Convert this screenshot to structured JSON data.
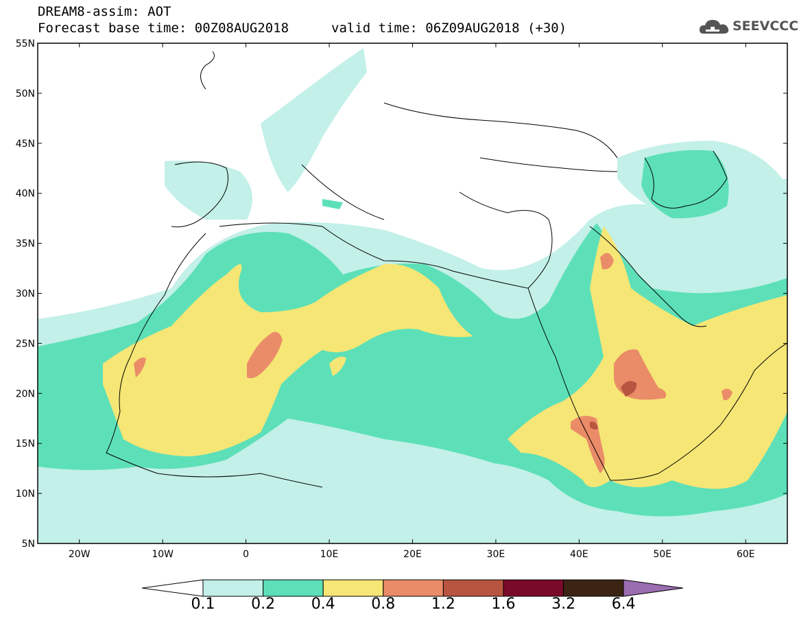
{
  "header": {
    "title": "DREAM8-assim: AOT",
    "base_time": "Forecast base time: 00Z08AUG2018",
    "valid_time": "valid time: 06Z09AUG2018 (+30)"
  },
  "logo": {
    "text": "SEEVCCC",
    "icon": "cloud-icon"
  },
  "map": {
    "lon_range": [
      -25,
      65
    ],
    "lat_range": [
      5,
      55
    ],
    "lat_ticks": [
      "5N",
      "10N",
      "15N",
      "20N",
      "25N",
      "30N",
      "35N",
      "40N",
      "45N",
      "50N",
      "55N"
    ],
    "lon_ticks": [
      "20W",
      "10W",
      "0",
      "10E",
      "20E",
      "30E",
      "40E",
      "50E",
      "60E"
    ]
  },
  "colorbar": {
    "colors": [
      "#c3f0e8",
      "#5de0b8",
      "#f6e675",
      "#ea8c68",
      "#b85540",
      "#7a0a2a",
      "#3c2414",
      "#9a6cb0"
    ],
    "under_color": "#ffffff",
    "labels": [
      "0.1",
      "0.2",
      "0.4",
      "0.8",
      "1.2",
      "1.6",
      "3.2",
      "6.4"
    ]
  }
}
